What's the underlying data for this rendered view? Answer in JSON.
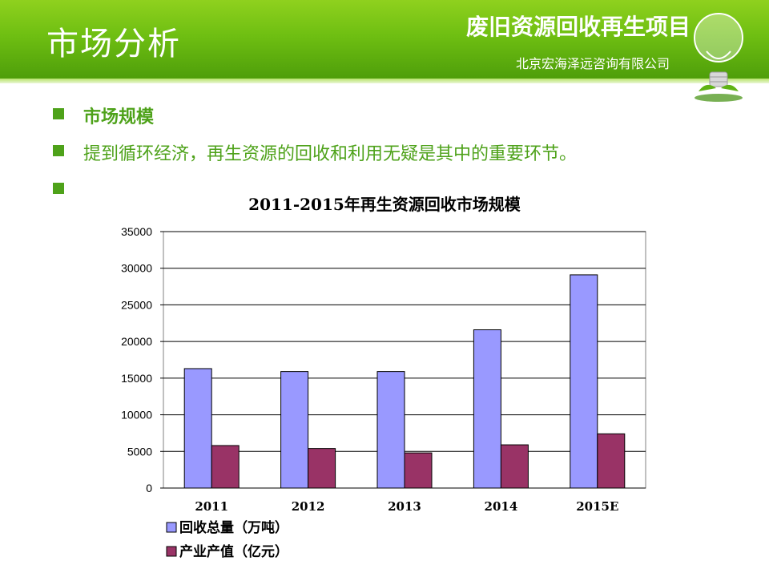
{
  "header": {
    "page_title": "市场分析",
    "project_title": "废旧资源回收再生项目",
    "company": "北京宏海泽远咨询有限公司"
  },
  "bullets": [
    {
      "text": "市场规模",
      "bold": true
    },
    {
      "text": "提到循环经济，再生资源的回收和利用无疑是其中的重要环节。",
      "bold": false
    },
    {
      "text": "",
      "bold": false
    }
  ],
  "colors": {
    "accent_green": "#4ea21a",
    "series_recycle": "#9999ff",
    "series_output": "#993366"
  },
  "icons": [
    "lightbulb-icon",
    "square-bullet-icon"
  ],
  "chart_data": {
    "type": "bar",
    "title": "2011-2015年再生资源回收市场规模",
    "categories": [
      "2011",
      "2012",
      "2013",
      "2014",
      "2015E"
    ],
    "series": [
      {
        "name": "回收总量（万吨）",
        "values": [
          16300,
          15900,
          15900,
          21600,
          29100
        ]
      },
      {
        "name": "产业产值（亿元）",
        "values": [
          5800,
          5400,
          4800,
          5900,
          7400
        ]
      }
    ],
    "yticks": [
      "0",
      "5000",
      "10000",
      "15000",
      "20000",
      "25000",
      "30000",
      "35000"
    ],
    "ylim": [
      0,
      35000
    ],
    "grid": true,
    "legend": "bottom"
  }
}
